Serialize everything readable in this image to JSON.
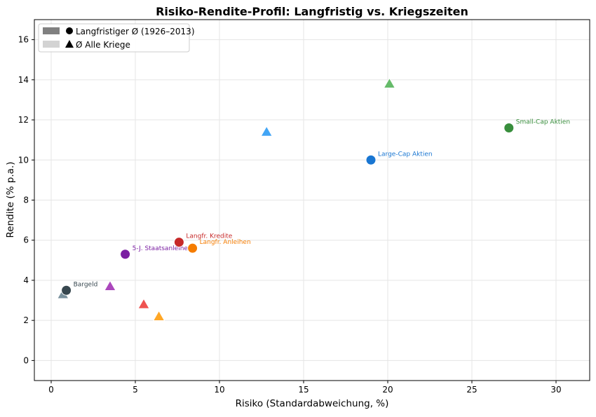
{
  "chart_data": {
    "type": "scatter",
    "title": "Risiko-Rendite-Profil: Langfristig vs. Kriegszeiten",
    "xlabel": "Risiko (Standardabweichung, %)",
    "ylabel": "Rendite (% p.a.)",
    "xlim": [
      -1,
      32
    ],
    "ylim": [
      -1,
      17
    ],
    "xticks": [
      0,
      5,
      10,
      15,
      20,
      25,
      30
    ],
    "yticks": [
      0,
      2,
      4,
      6,
      8,
      10,
      12,
      14,
      16
    ],
    "grid": true,
    "legend": {
      "placement": "top-left",
      "entries": [
        {
          "label": "Langfristiger Ø (1926–2013)",
          "marker": "circle",
          "swatch": "#808080"
        },
        {
          "label": "Ø Alle Kriege",
          "marker": "triangle",
          "swatch": "#d3d3d3"
        }
      ]
    },
    "assets": [
      {
        "label": "Bargeld",
        "color": "#37474f",
        "war_color": "#78909c",
        "longterm": {
          "x": 0.9,
          "y": 3.5
        },
        "war": {
          "x": 0.7,
          "y": 3.3
        }
      },
      {
        "label": "5-J. Staatsanleihen",
        "color": "#7b1fa2",
        "war_color": "#ab47bc",
        "longterm": {
          "x": 4.4,
          "y": 5.3
        },
        "war": {
          "x": 3.5,
          "y": 3.7
        }
      },
      {
        "label": "Langfr. Kredite",
        "color": "#c62828",
        "war_color": "#ef5350",
        "longterm": {
          "x": 7.6,
          "y": 5.9
        },
        "war": {
          "x": 5.5,
          "y": 2.8
        }
      },
      {
        "label": "Langfr. Anleihen",
        "color": "#f57c00",
        "war_color": "#ffa726",
        "longterm": {
          "x": 8.4,
          "y": 5.6
        },
        "war": {
          "x": 6.4,
          "y": 2.2
        }
      },
      {
        "label": "Large-Cap Aktien",
        "color": "#1976d2",
        "war_color": "#42a5f5",
        "longterm": {
          "x": 19.0,
          "y": 10.0
        },
        "war": {
          "x": 12.8,
          "y": 11.4
        }
      },
      {
        "label": "Small-Cap Aktien",
        "color": "#388e3c",
        "war_color": "#66bb6a",
        "longterm": {
          "x": 27.2,
          "y": 11.6
        },
        "war": {
          "x": 20.1,
          "y": 13.8
        }
      }
    ]
  }
}
